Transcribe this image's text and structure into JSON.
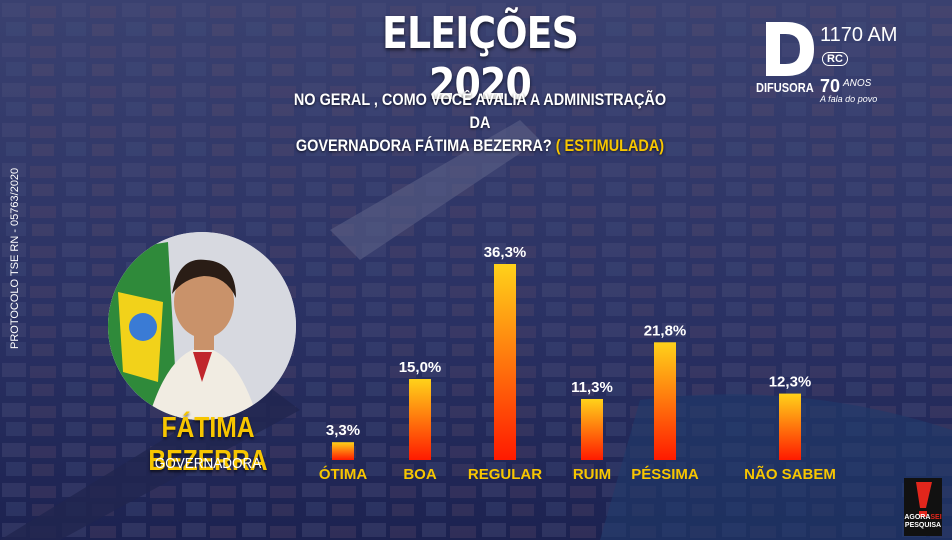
{
  "header": {
    "title": "ELEIÇÕES 2020",
    "question_line1": "NO GERAL , COMO VOCÊ AVALIA A ADMINISTRAÇÃO DA",
    "question_line2": "GOVERNADORA FÁTIMA BEZERRA?",
    "question_highlight": "( ESTIMULADA)"
  },
  "protocol": "PROTOCOLO TSE RN - 05763/2020",
  "candidate": {
    "name": "FÁTIMA BEZERRA",
    "role": "GOVERNADORA"
  },
  "broadcaster": {
    "frequency": "1170 AM",
    "network": "RC",
    "brand": "DIFUSORA",
    "anniversary": "70",
    "anniversary_word": "ANOS",
    "tagline": "A fala do povo"
  },
  "pollster": {
    "name_top": "AGORA",
    "name_highlight": "SEI",
    "name_bottom": "PESQUISA"
  },
  "colors": {
    "accent": "#f7c600",
    "bar_top": "#ffd21a",
    "bar_bottom": "#ff1a00",
    "background": "#2a3160"
  },
  "chart_data": {
    "type": "bar",
    "categories": [
      "ÓTIMA",
      "BOA",
      "REGULAR",
      "RUIM",
      "PÉSSIMA",
      "NÃO SABEM"
    ],
    "values": [
      3.3,
      15.0,
      36.3,
      11.3,
      21.8,
      12.3
    ],
    "value_labels": [
      "3,3%",
      "15,0%",
      "36,3%",
      "11,3%",
      "21,8%",
      "12,3%"
    ],
    "title": "",
    "xlabel": "",
    "ylabel": "",
    "ylim": [
      0,
      36.3
    ],
    "grid": false
  }
}
